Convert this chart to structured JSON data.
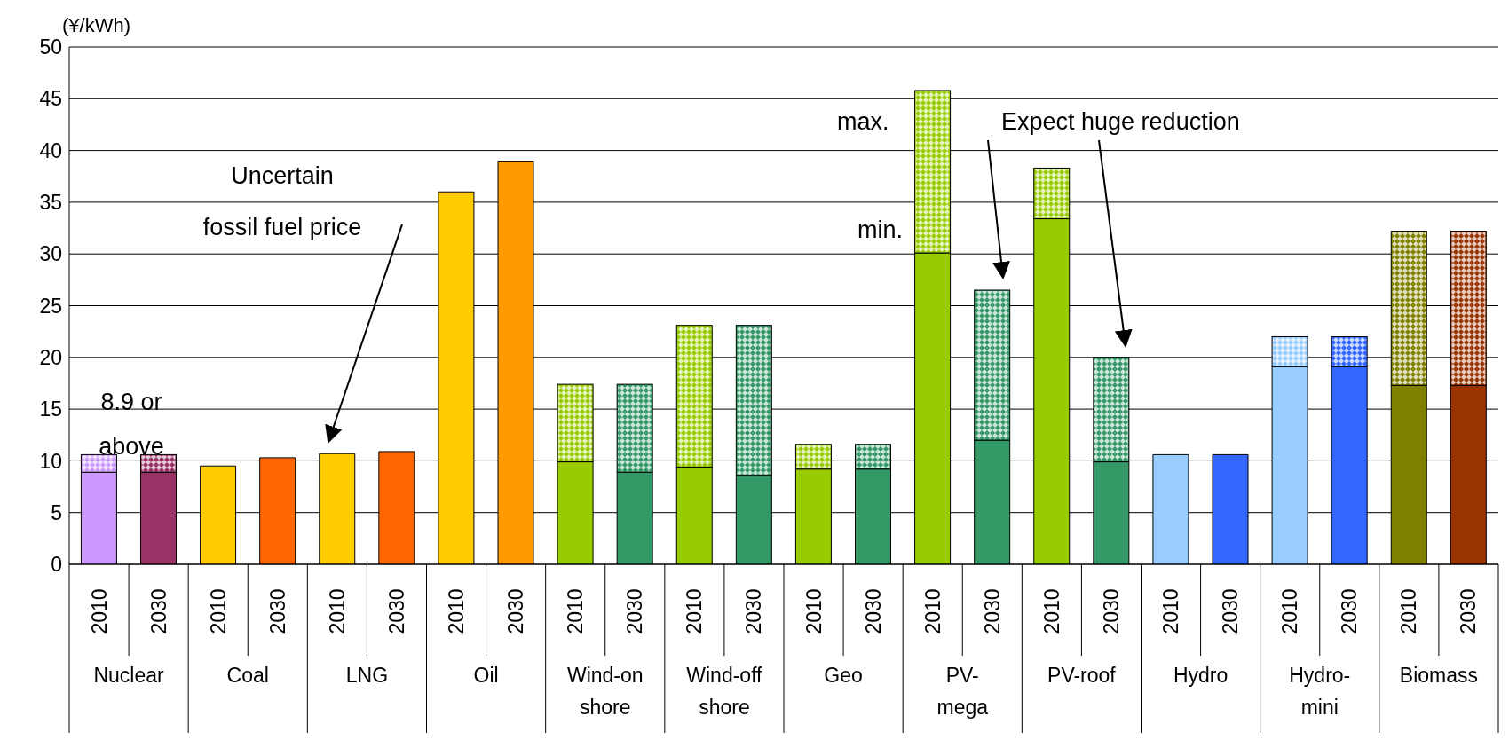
{
  "chart_data": {
    "type": "bar",
    "stacked": true,
    "ylabel": "(¥/kWh)",
    "categories": [
      "2010",
      "2030",
      "2010",
      "2030",
      "2010",
      "2030",
      "2010",
      "2030",
      "2010",
      "2030",
      "2010",
      "2030",
      "2010",
      "2030",
      "2010",
      "2030",
      "2010",
      "2030",
      "2010",
      "2030",
      "2010",
      "2030",
      "2010",
      "2030"
    ],
    "series": [
      {
        "name": "min.",
        "colors": [
          "#cc99ff",
          "#993366",
          "#ffcc00",
          "#ff6600",
          "#ffcc00",
          "#ff6600",
          "#ffcc00",
          "#ff9900",
          "#99cc00",
          "#339966",
          "#99cc00",
          "#339966",
          "#99cc00",
          "#339966",
          "#99cc00",
          "#339966",
          "#99cc00",
          "#339966",
          "#99ccff",
          "#3366ff",
          "#99ccff",
          "#3366ff",
          "#808000",
          "#993300"
        ],
        "values": [
          8.9,
          8.9,
          9.5,
          10.3,
          10.7,
          10.9,
          36.0,
          38.9,
          9.9,
          8.9,
          9.4,
          8.6,
          9.2,
          9.2,
          30.1,
          12.0,
          33.4,
          9.9,
          10.6,
          10.6,
          19.1,
          19.1,
          17.3,
          17.3
        ]
      },
      {
        "name": "max.",
        "colors": [
          "#cc99ff",
          "#993366",
          "#ffcc00",
          "#ff6600",
          "#ffcc00",
          "#ff6600",
          "#ffcc00",
          "#ff9900",
          "#99cc00",
          "#339966",
          "#99cc00",
          "#339966",
          "#99cc00",
          "#339966",
          "#99cc00",
          "#339966",
          "#99cc00",
          "#339966",
          "#99ccff",
          "#3366ff",
          "#99ccff",
          "#3366ff",
          "#808000",
          "#993300"
        ],
        "values": [
          1.7,
          1.7,
          null,
          null,
          null,
          null,
          null,
          null,
          7.5,
          8.5,
          13.7,
          14.5,
          2.4,
          2.4,
          15.7,
          14.5,
          4.9,
          10.1,
          null,
          null,
          2.9,
          2.9,
          14.9,
          14.9
        ]
      }
    ],
    "ylim": [
      0,
      50
    ],
    "yticks": [
      0,
      5,
      10,
      15,
      20,
      25,
      30,
      35,
      40,
      45,
      50
    ],
    "grid": "y",
    "legend": false,
    "annotations": [
      "8.9 or above",
      "Uncertain\nfossil fuel price",
      "Expect huge reduction",
      "Nuclear",
      "Coal",
      "LNG",
      "Oil",
      "Wind-on\nshore",
      "Wind-off\nshore",
      "Geo",
      "PV-\nmega",
      "PV-roof",
      "Hydro",
      "Hydro-\nmini",
      "Biomass"
    ]
  }
}
